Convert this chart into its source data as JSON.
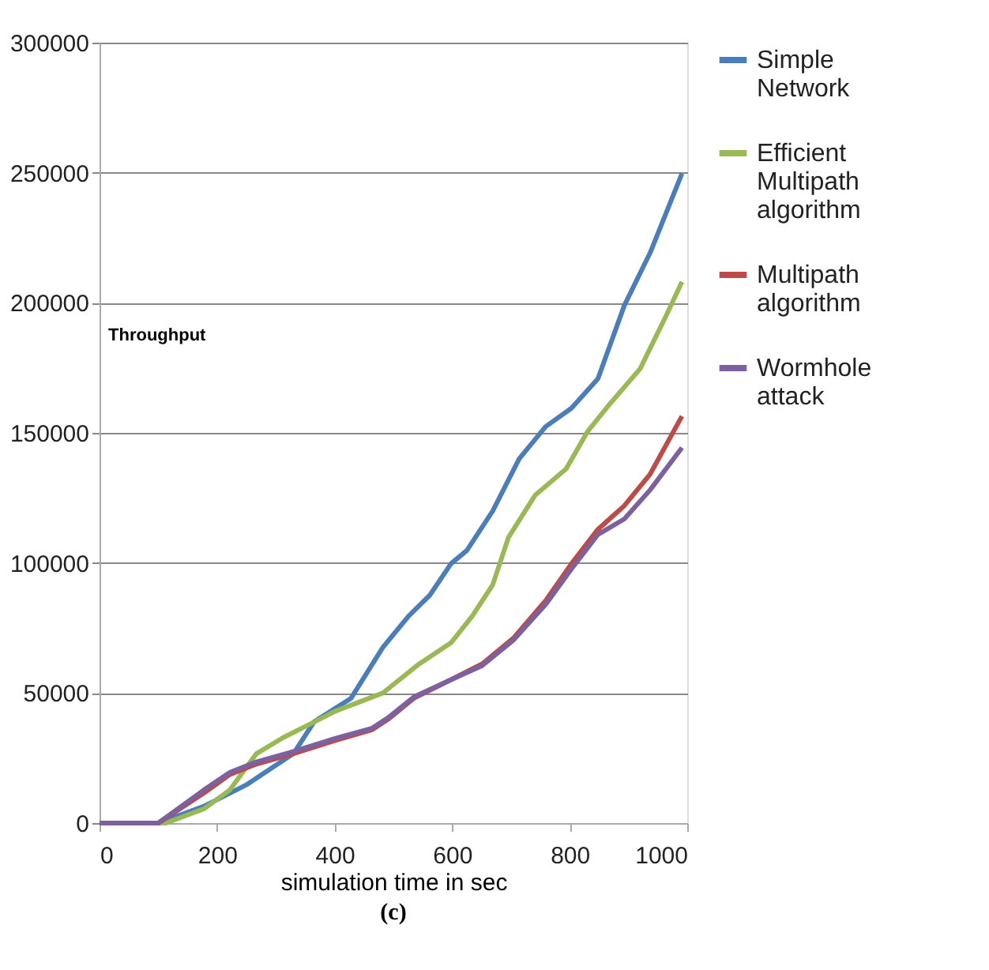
{
  "chart_data": {
    "type": "line",
    "xlabel": "simulation time in sec",
    "ylabel": "Throughput",
    "annotations": [
      "(c)"
    ],
    "xlim": [
      0,
      1000
    ],
    "xticks": [
      0,
      200,
      400,
      600,
      800,
      1000
    ],
    "ylim": [
      0,
      300000
    ],
    "yticks": [
      0,
      50000,
      100000,
      150000,
      200000,
      250000,
      300000
    ],
    "grid": "y",
    "legend": "right",
    "marker": "none",
    "line_style": "solid",
    "series": [
      {
        "name": "Simple Network",
        "color": "#4a7ebb",
        "x": [
          0,
          100,
          178,
          249,
          330,
          365,
          428,
          482,
          526,
          562,
          598,
          625,
          669,
          714,
          759,
          803,
          848,
          893,
          937,
          991
        ],
        "values": [
          0,
          0,
          6500,
          14600,
          26700,
          38900,
          48000,
          67500,
          79600,
          87600,
          99700,
          104800,
          120000,
          140000,
          152400,
          159500,
          170800,
          199000,
          219300,
          249700
        ]
      },
      {
        "name": "Efficient Multipath algorithm",
        "color": "#98b954",
        "x": [
          0,
          113,
          178,
          222,
          267,
          312,
          357,
          401,
          482,
          544,
          598,
          634,
          669,
          696,
          741,
          794,
          830,
          866,
          920,
          964,
          991
        ],
        "values": [
          0,
          0,
          5500,
          12800,
          26700,
          32800,
          37900,
          43000,
          50000,
          61200,
          69300,
          79500,
          91600,
          109900,
          126000,
          136200,
          150400,
          160500,
          174700,
          195000,
          208100
        ]
      },
      {
        "name": "Multipath algorithm",
        "color": "#be4b48",
        "x": [
          0,
          100,
          178,
          222,
          267,
          330,
          401,
          464,
          491,
          535,
          598,
          651,
          705,
          759,
          803,
          848,
          893,
          937,
          991
        ],
        "values": [
          0,
          0,
          11600,
          18700,
          22700,
          26700,
          31800,
          35900,
          39900,
          48000,
          55100,
          61200,
          71300,
          85500,
          99700,
          112900,
          122000,
          134200,
          156400
        ]
      },
      {
        "name": "Wormhole attack",
        "color": "#7d60a0",
        "x": [
          0,
          100,
          178,
          222,
          267,
          330,
          401,
          464,
          491,
          535,
          598,
          651,
          705,
          759,
          803,
          848,
          893,
          937,
          991
        ],
        "values": [
          0,
          0,
          12800,
          19500,
          23500,
          27500,
          32500,
          36500,
          40500,
          48500,
          55100,
          60500,
          70500,
          84000,
          97700,
          110900,
          116900,
          128100,
          144300
        ]
      }
    ]
  }
}
